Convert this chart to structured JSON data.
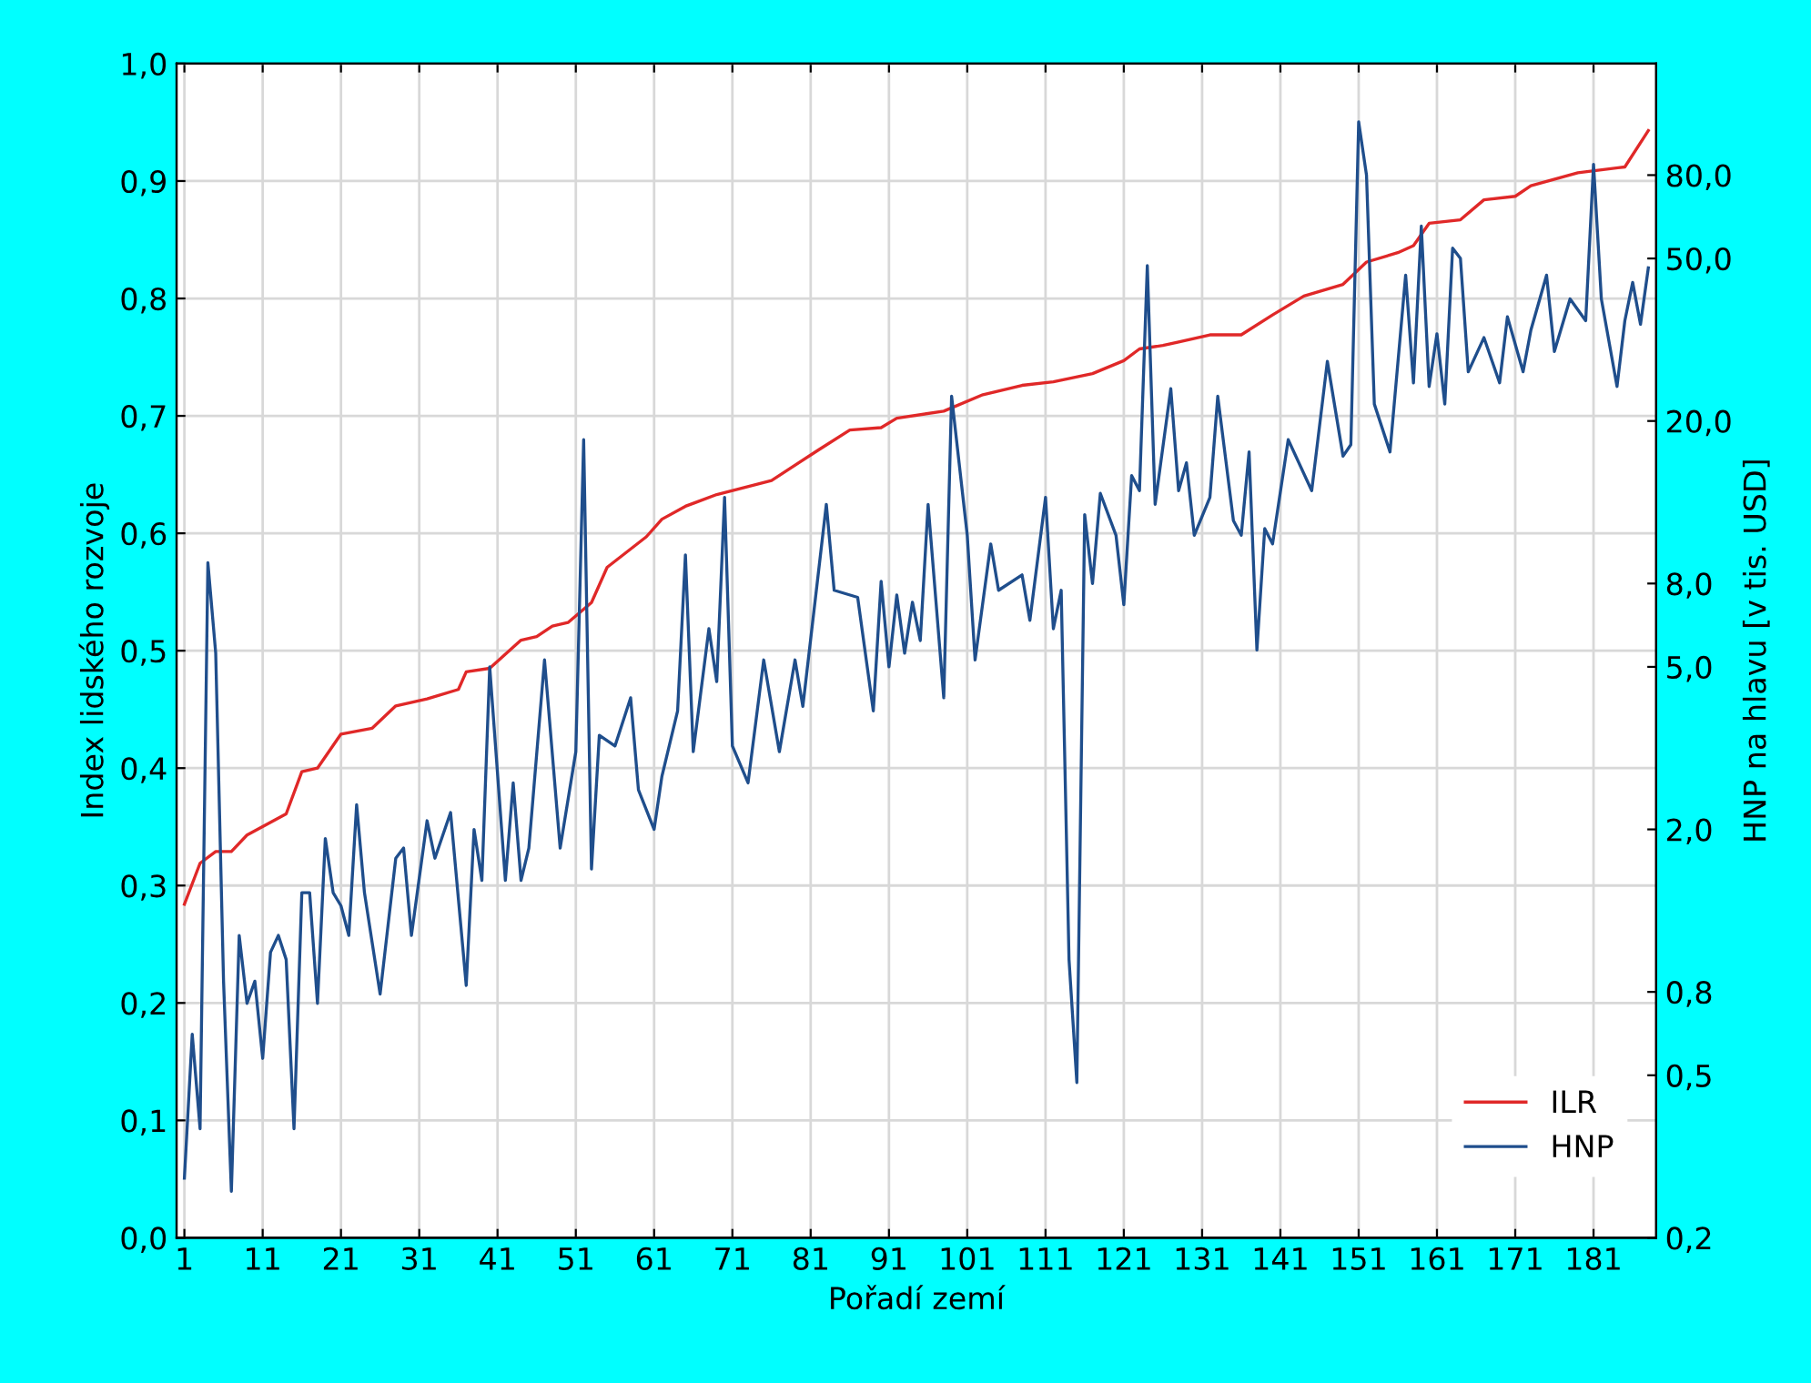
{
  "chart_data": {
    "type": "line",
    "xlabel": "Pořadí zemí",
    "ylabel": "Index lidského rozvoje",
    "y2label": "HNP na hlavu [v tis. USD]",
    "xlim": [
      0,
      189
    ],
    "xticks": [
      1,
      11,
      21,
      31,
      41,
      51,
      61,
      71,
      81,
      91,
      101,
      111,
      121,
      131,
      141,
      151,
      161,
      171,
      181
    ],
    "ylim": [
      0,
      1
    ],
    "yticks": [
      {
        "value": 0,
        "label": "0,0"
      },
      {
        "value": 0.1,
        "label": "0,1"
      },
      {
        "value": 0.2,
        "label": "0,2"
      },
      {
        "value": 0.3,
        "label": "0,3"
      },
      {
        "value": 0.4,
        "label": "0,4"
      },
      {
        "value": 0.5,
        "label": "0,5"
      },
      {
        "value": 0.6,
        "label": "0,6"
      },
      {
        "value": 0.7,
        "label": "0,7"
      },
      {
        "value": 0.8,
        "label": "0,8"
      },
      {
        "value": 0.9,
        "label": "0,9"
      },
      {
        "value": 1,
        "label": "1,0"
      }
    ],
    "log": "y2",
    "y2lim": [
      0.2,
      150
    ],
    "y2ticks": [
      {
        "value": 0.2,
        "label": "0,2"
      },
      {
        "value": 0.5,
        "label": "0,5"
      },
      {
        "value": 0.8,
        "label": "0,8"
      },
      {
        "value": 2,
        "label": "2,0"
      },
      {
        "value": 5,
        "label": "5,0"
      },
      {
        "value": 8,
        "label": "8,0"
      },
      {
        "value": 20,
        "label": "20,0"
      },
      {
        "value": 50,
        "label": "50,0"
      },
      {
        "value": 80,
        "label": "80,0"
      }
    ],
    "grid": true,
    "legend": "bottom right",
    "line_style": "solid",
    "marker": "none",
    "series": [
      {
        "name": "ILR",
        "color": "#e02828",
        "x": [
          1,
          3,
          5,
          7,
          9,
          14,
          16,
          18,
          21,
          25,
          28,
          32,
          36,
          37,
          40,
          44,
          46,
          48,
          50,
          53,
          55,
          60,
          62,
          65,
          69,
          76,
          82,
          86,
          90,
          92,
          98,
          103,
          108,
          112,
          117,
          121,
          123,
          126,
          128,
          132,
          136,
          140,
          144,
          149,
          152,
          156,
          158,
          160,
          164,
          167,
          171,
          173,
          179,
          185,
          188
        ],
        "values": [
          0.284,
          0.319,
          0.329,
          0.329,
          0.343,
          0.361,
          0.397,
          0.4,
          0.429,
          0.434,
          0.453,
          0.459,
          0.467,
          0.482,
          0.485,
          0.509,
          0.512,
          0.521,
          0.524,
          0.541,
          0.571,
          0.597,
          0.612,
          0.623,
          0.633,
          0.645,
          0.671,
          0.688,
          0.69,
          0.698,
          0.704,
          0.718,
          0.726,
          0.729,
          0.736,
          0.747,
          0.757,
          0.76,
          0.763,
          0.769,
          0.769,
          0.786,
          0.802,
          0.812,
          0.831,
          0.839,
          0.845,
          0.864,
          0.867,
          0.884,
          0.887,
          0.896,
          0.907,
          0.912,
          0.943
        ]
      },
      {
        "name": "HNP",
        "color": "#1f4e8c",
        "axis": "y2",
        "x": [
          1,
          2,
          3,
          4,
          5,
          6,
          7,
          8,
          9,
          10,
          11,
          12,
          13,
          14,
          15,
          16,
          17,
          18,
          19,
          20,
          21,
          22,
          23,
          24,
          26,
          28,
          29,
          30,
          32,
          33,
          35,
          37,
          38,
          39,
          40,
          42,
          43,
          44,
          45,
          47,
          49,
          51,
          52,
          53,
          54,
          56,
          58,
          59,
          61,
          62,
          64,
          65,
          66,
          68,
          69,
          70,
          71,
          73,
          75,
          77,
          79,
          80,
          83,
          84,
          87,
          89,
          90,
          91,
          92,
          93,
          94,
          95,
          96,
          98,
          99,
          101,
          102,
          104,
          105,
          108,
          109,
          111,
          112,
          113,
          114,
          115,
          116,
          117,
          118,
          120,
          121,
          122,
          123,
          124,
          125,
          127,
          128,
          129,
          130,
          132,
          133,
          135,
          136,
          137,
          138,
          139,
          140,
          142,
          145,
          147,
          149,
          150,
          151,
          152,
          153,
          155,
          157,
          158,
          159,
          160,
          161,
          162,
          163,
          164,
          165,
          167,
          169,
          170,
          172,
          173,
          175,
          176,
          178,
          180,
          181,
          182,
          184,
          185,
          186,
          187,
          188
        ],
        "values": [
          0.28,
          0.63,
          0.37,
          9.0,
          5.4,
          0.85,
          0.26,
          1.1,
          0.75,
          0.85,
          0.55,
          1.0,
          1.1,
          0.96,
          0.37,
          1.4,
          1.4,
          0.75,
          1.9,
          1.4,
          1.3,
          1.1,
          2.3,
          1.4,
          0.79,
          1.7,
          1.8,
          1.1,
          2.1,
          1.7,
          2.2,
          0.83,
          2.0,
          1.5,
          5.0,
          1.5,
          2.6,
          1.5,
          1.8,
          5.2,
          1.8,
          3.1,
          18,
          1.6,
          3.4,
          3.2,
          4.2,
          2.5,
          2.0,
          2.7,
          3.9,
          9.4,
          3.1,
          6.2,
          4.6,
          13,
          3.2,
          2.6,
          5.2,
          3.1,
          5.2,
          4.0,
          12.5,
          7.7,
          7.4,
          3.9,
          8.1,
          5.0,
          7.5,
          5.4,
          7.2,
          5.8,
          12.5,
          4.2,
          23,
          10.5,
          5.2,
          10.0,
          7.7,
          8.4,
          6.5,
          13,
          6.2,
          7.7,
          0.96,
          0.48,
          11.8,
          8.0,
          13.3,
          10.5,
          7.1,
          14.7,
          13.5,
          48,
          12.5,
          24,
          13.5,
          15.8,
          10.5,
          13,
          23,
          11.4,
          10.5,
          16.8,
          5.5,
          10.9,
          10.0,
          18,
          13.5,
          28,
          16.4,
          17.5,
          108,
          80,
          22,
          16.8,
          45.5,
          24.8,
          60,
          24.3,
          32.7,
          22,
          53,
          50,
          26.4,
          32,
          24.8,
          36,
          26.4,
          33.4,
          45.5,
          29.6,
          39.8,
          35.2,
          85,
          39.8,
          24.3,
          35.2,
          43.7,
          34.5,
          47.4
        ]
      }
    ]
  }
}
